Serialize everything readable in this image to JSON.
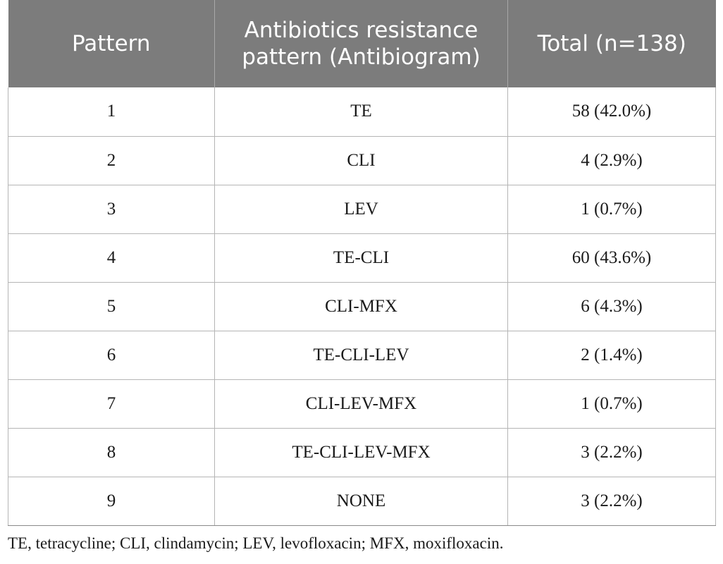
{
  "table": {
    "headers": [
      "Pattern",
      "Antibiotics resistance pattern (Antibiogram)",
      "Total (n=138)"
    ],
    "rows": [
      {
        "pattern": "1",
        "antibiogram": "TE",
        "total": "58 (42.0%)"
      },
      {
        "pattern": "2",
        "antibiogram": "CLI",
        "total": "4 (2.9%)"
      },
      {
        "pattern": "3",
        "antibiogram": "LEV",
        "total": "1 (0.7%)"
      },
      {
        "pattern": "4",
        "antibiogram": "TE-CLI",
        "total": "60 (43.6%)"
      },
      {
        "pattern": "5",
        "antibiogram": "CLI-MFX",
        "total": "6 (4.3%)"
      },
      {
        "pattern": "6",
        "antibiogram": "TE-CLI-LEV",
        "total": "2 (1.4%)"
      },
      {
        "pattern": "7",
        "antibiogram": "CLI-LEV-MFX",
        "total": "1 (0.7%)"
      },
      {
        "pattern": "8",
        "antibiogram": "TE-CLI-LEV-MFX",
        "total": "3 (2.2%)"
      },
      {
        "pattern": "9",
        "antibiogram": "NONE",
        "total": "3 (2.2%)"
      }
    ]
  },
  "footnote": "TE, tetracycline; CLI, clindamycin; LEV, levofloxacin; MFX, moxifloxacin.",
  "colors": {
    "header_bg": "#7c7c7c",
    "header_text": "#ffffff",
    "grid": "#b5b5b5"
  }
}
